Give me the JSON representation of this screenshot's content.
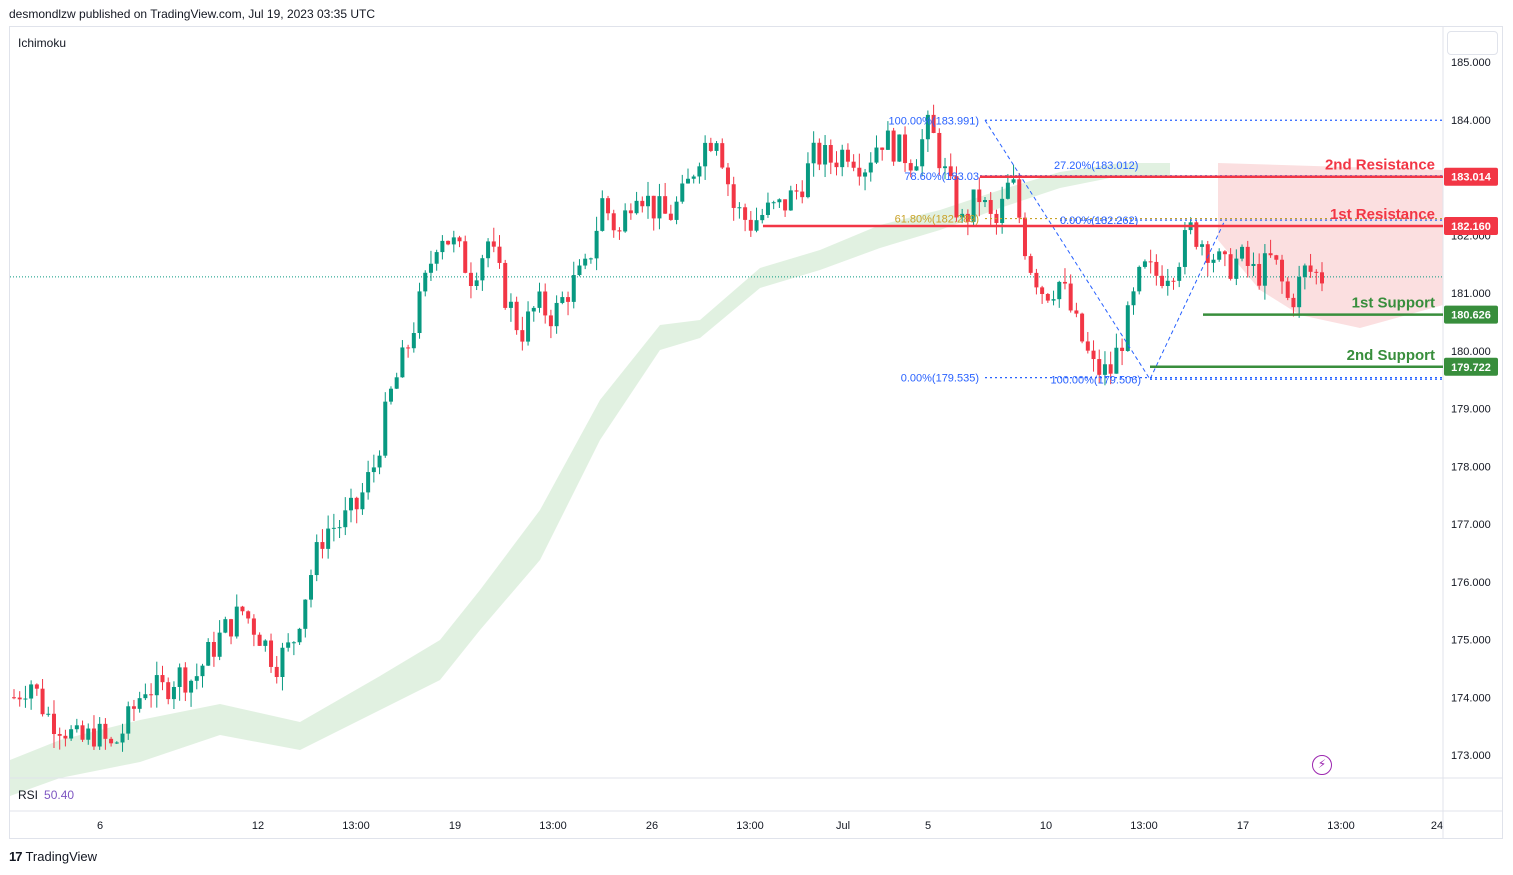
{
  "header": {
    "publisher_line": "desmondlzw published on TradingView.com, Jul 19, 2023 03:35 UTC"
  },
  "indicator": {
    "name": "Ichimoku"
  },
  "rsi": {
    "label": "RSI",
    "value": "50.40"
  },
  "footer": {
    "brand": "TradingView",
    "brand_mark": "17"
  },
  "colors": {
    "up": "#089981",
    "down": "#f23645",
    "cloud_green": "#c8e6c9",
    "cloud_red": "#f7c5c7",
    "resistance": "#f23645",
    "support": "#388e3c",
    "fib": "#2962ff",
    "fib_gold": "#c9a227"
  },
  "chart_data": {
    "type": "candlestick",
    "symbol_interval": "hourly",
    "y_axis": {
      "ticks": [
        173.0,
        174.0,
        175.0,
        176.0,
        177.0,
        178.0,
        179.0,
        180.0,
        181.0,
        182.0,
        183.0,
        184.0,
        185.0
      ],
      "tick_labels": [
        "173.000",
        "174.000",
        "175.000",
        "176.000",
        "177.000",
        "178.000",
        "179.000",
        "180.000",
        "181.000",
        "182.000",
        "183.000",
        "184.000",
        "185.000"
      ],
      "range": [
        172.65,
        186.0
      ]
    },
    "x_axis": {
      "tick_labels": [
        "6",
        "12",
        "13:00",
        "19",
        "13:00",
        "26",
        "13:00",
        "Jul",
        "5",
        "10",
        "13:00",
        "17",
        "13:00",
        "24"
      ]
    },
    "levels": [
      {
        "name": "2nd Resistance",
        "value": 183.014,
        "label": "183.014",
        "kind": "resistance"
      },
      {
        "name": "1st Resistance",
        "value": 182.16,
        "label": "182.160",
        "kind": "resistance"
      },
      {
        "name": "1st Support",
        "value": 180.626,
        "label": "180.626",
        "kind": "support"
      },
      {
        "name": "2nd Support",
        "value": 179.722,
        "label": "179.722",
        "kind": "support"
      }
    ],
    "fib_labels": [
      {
        "text": "100.00%(183.991)",
        "value": 183.991
      },
      {
        "text": "78.60%(183.03",
        "value": 183.03
      },
      {
        "text": "61.80%(182.289)",
        "value": 182.289
      },
      {
        "text": "0.00%(179.535)",
        "value": 179.535
      },
      {
        "text": "27.20%(183.012)",
        "value": 183.012
      },
      {
        "text": "0.00%(182.262)",
        "value": 182.262
      },
      {
        "text": "100.00%(179.506)",
        "value": 179.506
      }
    ],
    "last_price": 181.28,
    "candle_path": [
      174.0,
      174.3,
      173.7,
      173.5,
      173.2,
      173.4,
      173.1,
      173.6,
      174.2,
      174.1,
      174.4,
      174.3,
      174.8,
      175.2,
      175.5,
      175.1,
      174.6,
      174.9,
      176.0,
      176.9,
      177.0,
      177.3,
      178.0,
      179.2,
      180.0,
      181.0,
      182.1,
      181.8,
      181.3,
      181.9,
      181.0,
      180.3,
      180.8,
      180.6,
      181.1,
      181.4,
      182.6,
      182.0,
      182.9,
      182.5,
      182.3,
      182.7,
      183.5,
      183.8,
      182.5,
      182.2,
      182.4,
      182.5,
      182.8,
      183.4,
      183.3,
      183.5,
      183.2,
      183.7,
      183.5,
      183.3,
      183.9,
      183.0,
      182.2,
      182.7,
      182.1,
      183.0,
      181.6,
      181.0,
      181.2,
      180.4,
      179.7,
      179.6,
      180.4,
      181.4,
      181.3,
      181.5,
      182.1,
      181.8,
      181.4,
      181.6,
      181.3,
      181.6,
      180.8,
      181.4,
      181.28
    ]
  }
}
